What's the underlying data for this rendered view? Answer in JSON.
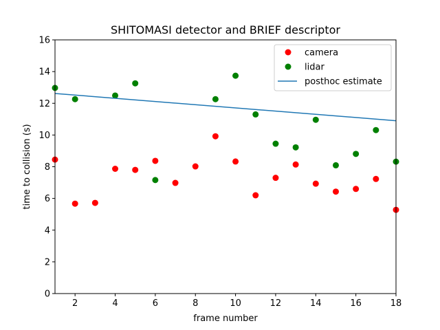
{
  "chart_data": {
    "type": "scatter",
    "title": "SHITOMASI detector and BRIEF descriptor",
    "xlabel": "frame number",
    "ylabel": "time to collision (s)",
    "xlim": [
      1,
      18
    ],
    "ylim": [
      0,
      16
    ],
    "xticks": [
      2,
      4,
      6,
      8,
      10,
      12,
      14,
      16,
      18
    ],
    "yticks": [
      0,
      2,
      4,
      6,
      8,
      10,
      12,
      14,
      16
    ],
    "legend_position": "top-right",
    "series": [
      {
        "name": "camera",
        "kind": "points",
        "color": "#ff0000",
        "x": [
          1,
          2,
          3,
          4,
          5,
          6,
          7,
          8,
          9,
          10,
          11,
          12,
          13,
          14,
          15,
          16,
          17,
          18
        ],
        "y": [
          8.45,
          5.67,
          5.72,
          7.87,
          7.8,
          8.37,
          6.98,
          8.02,
          9.92,
          8.33,
          6.2,
          7.3,
          8.14,
          6.93,
          6.43,
          6.6,
          7.23,
          5.28
        ]
      },
      {
        "name": "lidar",
        "kind": "points",
        "color": "#008000",
        "x": [
          1,
          2,
          4,
          5,
          6,
          9,
          10,
          11,
          12,
          13,
          14,
          15,
          16,
          17,
          18
        ],
        "y": [
          12.97,
          12.26,
          12.49,
          13.26,
          7.16,
          12.26,
          13.74,
          11.3,
          9.45,
          9.22,
          10.96,
          8.09,
          8.81,
          10.31,
          8.32
        ]
      },
      {
        "name": "posthoc estimate",
        "kind": "line",
        "color": "#1f77b4",
        "x": [
          1,
          18
        ],
        "y": [
          12.62,
          10.9
        ]
      }
    ]
  }
}
